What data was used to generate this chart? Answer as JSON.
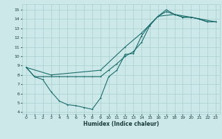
{
  "xlabel": "Humidex (Indice chaleur)",
  "bg_color": "#cce8e8",
  "grid_color": "#a8cece",
  "line_color": "#1a6b6b",
  "xlim": [
    -0.5,
    23.5
  ],
  "ylim": [
    3.8,
    15.6
  ],
  "xticks": [
    0,
    1,
    2,
    3,
    4,
    5,
    6,
    7,
    8,
    9,
    10,
    11,
    12,
    13,
    14,
    15,
    16,
    17,
    18,
    19,
    20,
    21,
    22,
    23
  ],
  "yticks": [
    4,
    5,
    6,
    7,
    8,
    9,
    10,
    11,
    12,
    13,
    14,
    15
  ],
  "line1_x": [
    0,
    1,
    2,
    3,
    4,
    5,
    6,
    7,
    8,
    9,
    10,
    11,
    12,
    13,
    14,
    15,
    16,
    17,
    18,
    19,
    20,
    21,
    22,
    23
  ],
  "line1_y": [
    8.8,
    7.8,
    7.8,
    7.8,
    7.8,
    7.8,
    7.8,
    7.8,
    7.8,
    7.8,
    8.5,
    9.2,
    10.0,
    10.5,
    11.5,
    13.3,
    14.3,
    14.8,
    14.5,
    14.2,
    14.2,
    14.0,
    13.7,
    13.7
  ],
  "line2_x": [
    0,
    1,
    2,
    3,
    4,
    5,
    6,
    7,
    8,
    9,
    10,
    11,
    12,
    13,
    14,
    15,
    16,
    17,
    18,
    19,
    20,
    21,
    22,
    23
  ],
  "line2_y": [
    8.8,
    7.8,
    7.5,
    6.2,
    5.2,
    4.8,
    4.7,
    4.5,
    4.3,
    5.5,
    7.8,
    8.5,
    10.2,
    10.3,
    12.2,
    13.4,
    14.3,
    15.0,
    14.5,
    14.2,
    14.2,
    14.0,
    13.7,
    13.7
  ],
  "line3_x": [
    0,
    3,
    9,
    12,
    14,
    16,
    18,
    20,
    23
  ],
  "line3_y": [
    8.8,
    8.0,
    8.5,
    11.0,
    12.5,
    14.3,
    14.5,
    14.2,
    13.7
  ],
  "xlabel_fontsize": 5.5,
  "tick_fontsize": 4.5,
  "lw": 0.8,
  "ms": 2.0
}
